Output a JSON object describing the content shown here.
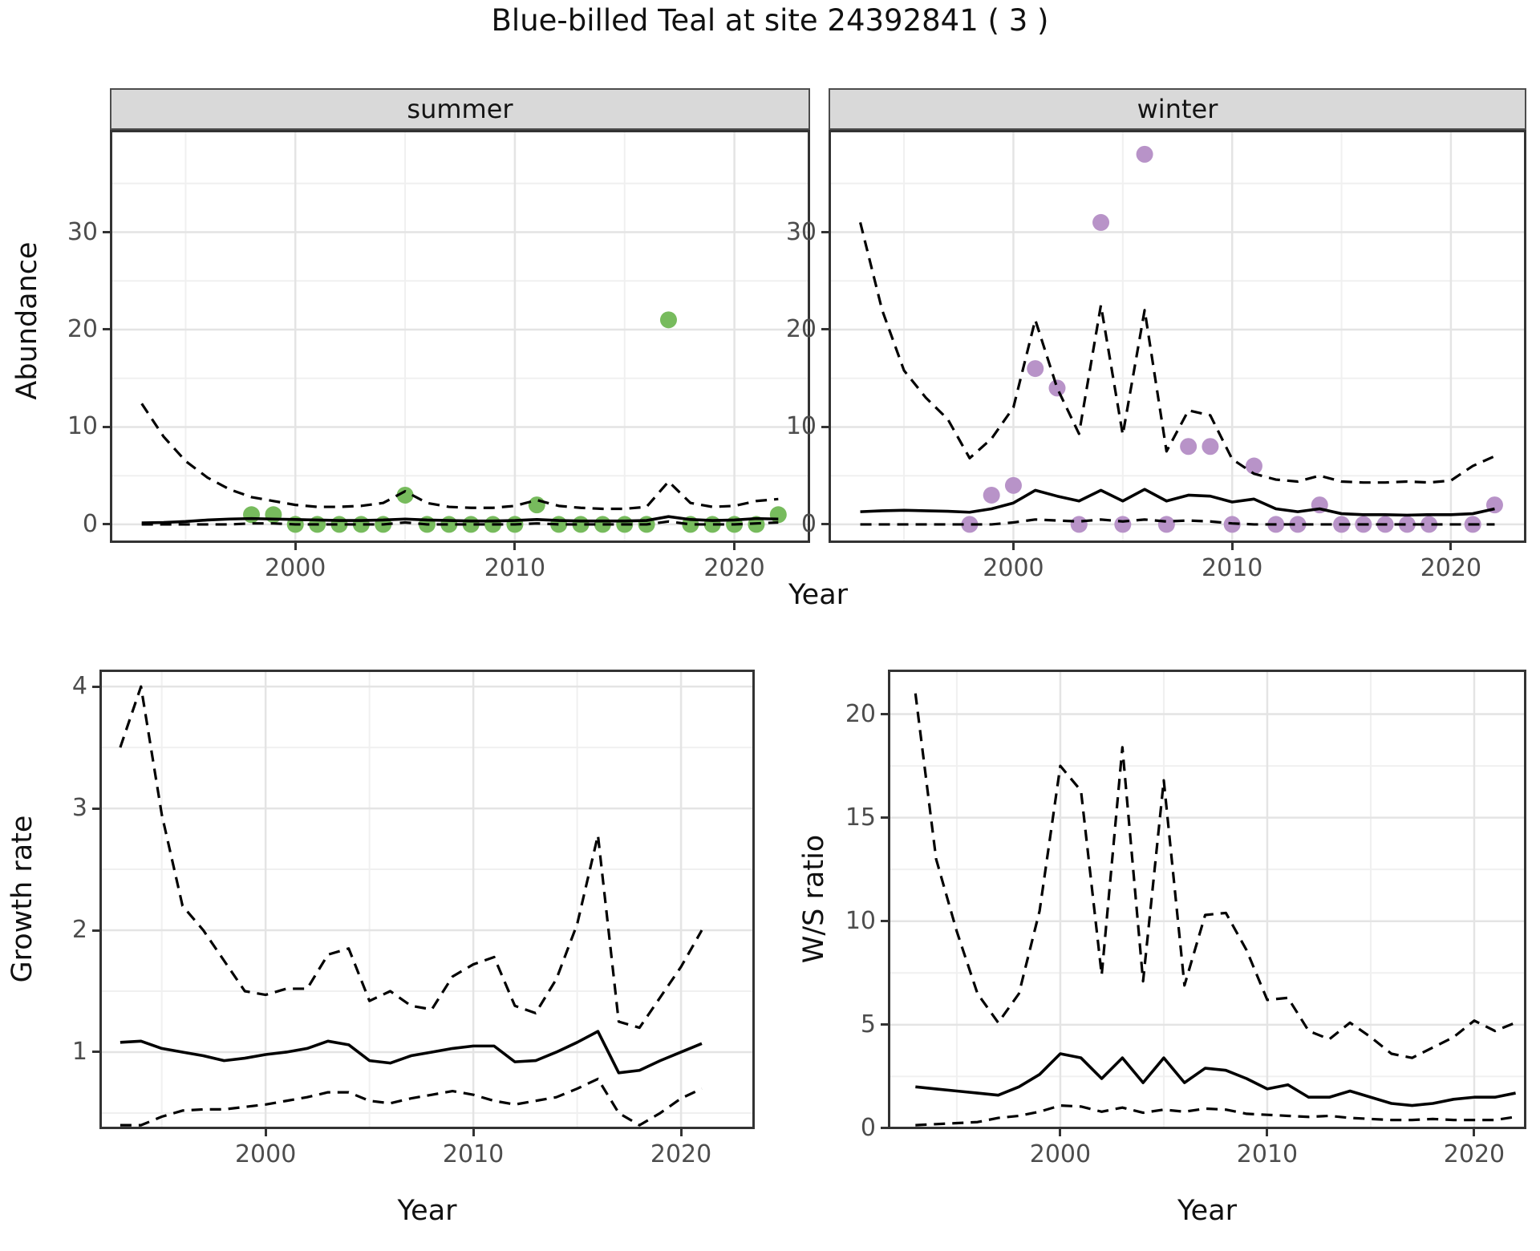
{
  "title": "Blue-billed Teal at site 24392841 ( 3 )",
  "facets": {
    "summer_label": "summer",
    "winter_label": "winter"
  },
  "axis_titles": {
    "abundance": "Abundance",
    "year_top": "Year",
    "growth": "Growth rate",
    "ws": "W/S ratio",
    "year_growth": "Year",
    "year_ws": "Year"
  },
  "colors": {
    "summer_points": "#77bb5d",
    "winter_points": "#b893c8",
    "line": "#000000",
    "strip_bg": "#d9d9d9",
    "grid_major": "#e4e4e4",
    "grid_minor": "#f0f0f0",
    "axis_text": "#4d4d4d",
    "panel_border": "#333333"
  },
  "chart_data": [
    {
      "name": "abundance-summer",
      "type": "line",
      "facet": "summer",
      "xlabel": "Year",
      "ylabel": "Abundance",
      "xlim": [
        1991.55,
        2023.45
      ],
      "ylim": [
        -1.9,
        40.5
      ],
      "x_major": [
        2000,
        2010,
        2020
      ],
      "x_tick_labels": [
        "2000",
        "2010",
        "2020"
      ],
      "x_minor": [
        1995,
        2005,
        2015
      ],
      "y_major": [
        0,
        10,
        20,
        30
      ],
      "y_tick_labels": [
        "0",
        "10",
        "20",
        "30"
      ],
      "y_minor": [
        5,
        15,
        25,
        35
      ],
      "years": [
        1993,
        1994,
        1995,
        1996,
        1997,
        1998,
        1999,
        2000,
        2001,
        2002,
        2003,
        2004,
        2005,
        2006,
        2007,
        2008,
        2009,
        2010,
        2011,
        2012,
        2013,
        2014,
        2015,
        2016,
        2017,
        2018,
        2019,
        2020,
        2021,
        2022
      ],
      "median": [
        0.15,
        0.2,
        0.3,
        0.45,
        0.55,
        0.6,
        0.55,
        0.5,
        0.45,
        0.4,
        0.4,
        0.45,
        0.55,
        0.45,
        0.4,
        0.35,
        0.35,
        0.4,
        0.5,
        0.4,
        0.35,
        0.35,
        0.35,
        0.4,
        0.8,
        0.5,
        0.4,
        0.45,
        0.6,
        0.55
      ],
      "upper": [
        12.4,
        9,
        6.5,
        4.8,
        3.6,
        2.8,
        2.4,
        2,
        1.8,
        1.8,
        1.9,
        2.2,
        3.4,
        2.2,
        1.8,
        1.7,
        1.7,
        1.9,
        2.5,
        1.9,
        1.7,
        1.6,
        1.6,
        1.8,
        4.4,
        2.2,
        1.8,
        1.9,
        2.4,
        2.6
      ],
      "lower": [
        0,
        0,
        0,
        0,
        0,
        0.1,
        0.1,
        0,
        0,
        0,
        0,
        0,
        0.2,
        0,
        0,
        0,
        0,
        0,
        0.1,
        0,
        0,
        0,
        0,
        0,
        0.3,
        0,
        0,
        0,
        0.1,
        0.2
      ],
      "points": {
        "color": "#77bb5d",
        "years": [
          1998,
          1999,
          2000,
          2001,
          2002,
          2003,
          2004,
          2005,
          2006,
          2007,
          2008,
          2009,
          2010,
          2011,
          2012,
          2013,
          2014,
          2015,
          2016,
          2017,
          2018,
          2019,
          2020,
          2021,
          2022
        ],
        "values": [
          1,
          1,
          0,
          0,
          0,
          0,
          0,
          3,
          0,
          0,
          0,
          0,
          0,
          2,
          0,
          0,
          0,
          0,
          0,
          21,
          0,
          0,
          0,
          0,
          1
        ]
      }
    },
    {
      "name": "abundance-winter",
      "type": "line",
      "facet": "winter",
      "xlabel": "Year",
      "ylabel": "Abundance",
      "xlim": [
        1991.55,
        2023.45
      ],
      "ylim": [
        -1.9,
        40.5
      ],
      "x_major": [
        2000,
        2010,
        2020
      ],
      "x_tick_labels": [
        "2000",
        "2010",
        "2020"
      ],
      "x_minor": [
        1995,
        2005,
        2015
      ],
      "y_major": [
        0,
        10,
        20,
        30
      ],
      "y_tick_labels": [
        "0",
        "10",
        "20",
        "30"
      ],
      "y_minor": [
        5,
        15,
        25,
        35
      ],
      "years": [
        1993,
        1994,
        1995,
        1996,
        1997,
        1998,
        1999,
        2000,
        2001,
        2002,
        2003,
        2004,
        2005,
        2006,
        2007,
        2008,
        2009,
        2010,
        2011,
        2012,
        2013,
        2014,
        2015,
        2016,
        2017,
        2018,
        2019,
        2020,
        2021,
        2022
      ],
      "median": [
        1.3,
        1.4,
        1.45,
        1.4,
        1.35,
        1.25,
        1.6,
        2.2,
        3.5,
        2.9,
        2.4,
        3.5,
        2.4,
        3.6,
        2.4,
        3,
        2.9,
        2.3,
        2.6,
        1.6,
        1.3,
        1.6,
        1.1,
        1,
        1,
        0.95,
        1,
        1,
        1.1,
        1.6
      ],
      "upper": [
        31,
        22,
        15.8,
        13,
        10.8,
        6.8,
        8.8,
        12,
        21,
        14,
        9.3,
        22.5,
        9.2,
        22,
        7.5,
        11.7,
        11.2,
        6.7,
        5.2,
        4.6,
        4.4,
        5,
        4.4,
        4.3,
        4.3,
        4.4,
        4.3,
        4.5,
        6,
        7
      ],
      "lower": [
        0,
        0,
        0,
        0,
        0,
        0,
        0,
        0.2,
        0.5,
        0.4,
        0.3,
        0.5,
        0.3,
        0.5,
        0.3,
        0.4,
        0.3,
        0.1,
        0,
        0,
        0,
        0,
        0,
        0,
        0,
        0,
        0,
        0,
        0,
        0
      ],
      "points": {
        "color": "#b893c8",
        "years": [
          1998,
          1999,
          2000,
          2001,
          2002,
          2003,
          2004,
          2005,
          2006,
          2007,
          2008,
          2009,
          2010,
          2011,
          2012,
          2013,
          2014,
          2015,
          2016,
          2017,
          2018,
          2019,
          2021,
          2022
        ],
        "values": [
          0,
          3,
          4,
          16,
          14,
          0,
          31,
          0,
          38,
          0,
          8,
          8,
          0,
          6,
          0,
          0,
          2,
          0,
          0,
          0,
          0,
          0,
          0,
          2
        ]
      }
    },
    {
      "name": "growth-rate",
      "type": "line",
      "facet": "",
      "xlabel": "Year",
      "ylabel": "Growth rate",
      "xlim": [
        1992.0,
        2023.55
      ],
      "ylim": [
        0.368,
        4.139
      ],
      "x_major": [
        2000,
        2010,
        2020
      ],
      "x_tick_labels": [
        "2000",
        "2010",
        "2020"
      ],
      "x_minor": [
        1995,
        2005,
        2015
      ],
      "y_major": [
        1,
        2,
        3,
        4
      ],
      "y_tick_labels": [
        "1",
        "2",
        "3",
        "4"
      ],
      "y_minor": [
        0.5,
        1.5,
        2.5,
        3.5
      ],
      "years": [
        1993,
        1994,
        1995,
        1996,
        1997,
        1998,
        1999,
        2000,
        2001,
        2002,
        2003,
        2004,
        2005,
        2006,
        2007,
        2008,
        2009,
        2010,
        2011,
        2012,
        2013,
        2014,
        2015,
        2016,
        2017,
        2018,
        2019,
        2020,
        2021
      ],
      "median": [
        1.08,
        1.09,
        1.03,
        1,
        0.97,
        0.93,
        0.95,
        0.98,
        1,
        1.03,
        1.09,
        1.06,
        0.93,
        0.91,
        0.97,
        1,
        1.03,
        1.05,
        1.05,
        0.92,
        0.93,
        1,
        1.08,
        1.17,
        0.83,
        0.85,
        0.93,
        1,
        1.07
      ],
      "upper": [
        3.5,
        4,
        2.95,
        2.2,
        2,
        1.75,
        1.5,
        1.47,
        1.52,
        1.52,
        1.8,
        1.85,
        1.42,
        1.5,
        1.38,
        1.35,
        1.62,
        1.72,
        1.78,
        1.38,
        1.32,
        1.6,
        2.05,
        2.78,
        1.25,
        1.2,
        1.45,
        1.7,
        2
      ],
      "lower": [
        0.4,
        0.4,
        0.47,
        0.52,
        0.53,
        0.53,
        0.55,
        0.57,
        0.6,
        0.63,
        0.67,
        0.67,
        0.6,
        0.58,
        0.62,
        0.65,
        0.68,
        0.65,
        0.6,
        0.57,
        0.6,
        0.63,
        0.7,
        0.78,
        0.5,
        0.4,
        0.5,
        0.62,
        0.7
      ]
    },
    {
      "name": "ws-ratio",
      "type": "line",
      "facet": "",
      "xlabel": "Year",
      "ylabel": "W/S ratio",
      "xlim": [
        1991.67,
        2022.52
      ],
      "ylim": [
        -0.04,
        22.15
      ],
      "x_major": [
        2000,
        2010,
        2020
      ],
      "x_tick_labels": [
        "2000",
        "2010",
        "2020"
      ],
      "x_minor": [
        1995,
        2005,
        2015
      ],
      "y_major": [
        0,
        5,
        10,
        15,
        20
      ],
      "y_tick_labels": [
        "0",
        "5",
        "10",
        "15",
        "20"
      ],
      "y_minor": [
        2.5,
        7.5,
        12.5,
        17.5
      ],
      "years": [
        1993,
        1994,
        1995,
        1996,
        1997,
        1998,
        1999,
        2000,
        2001,
        2002,
        2003,
        2004,
        2005,
        2006,
        2007,
        2008,
        2009,
        2010,
        2011,
        2012,
        2013,
        2014,
        2015,
        2016,
        2017,
        2018,
        2019,
        2020,
        2021,
        2022
      ],
      "median": [
        2,
        1.9,
        1.8,
        1.7,
        1.6,
        2,
        2.6,
        3.6,
        3.4,
        2.4,
        3.4,
        2.2,
        3.4,
        2.2,
        2.9,
        2.8,
        2.4,
        1.9,
        2.1,
        1.5,
        1.5,
        1.8,
        1.5,
        1.2,
        1.1,
        1.2,
        1.4,
        1.5,
        1.5,
        1.7
      ],
      "upper": [
        21,
        13,
        9.5,
        6.5,
        5.1,
        6.5,
        10.5,
        17.5,
        16.3,
        7.4,
        18.4,
        7.1,
        16.8,
        6.9,
        10.3,
        10.4,
        8.6,
        6.2,
        6.3,
        4.7,
        4.3,
        5.1,
        4.4,
        3.6,
        3.4,
        3.9,
        4.4,
        5.2,
        4.7,
        5.1
      ],
      "lower": [
        0.15,
        0.2,
        0.25,
        0.3,
        0.5,
        0.6,
        0.8,
        1.1,
        1.05,
        0.8,
        1,
        0.75,
        0.9,
        0.8,
        0.95,
        0.9,
        0.7,
        0.65,
        0.6,
        0.55,
        0.6,
        0.5,
        0.45,
        0.4,
        0.4,
        0.45,
        0.4,
        0.4,
        0.4,
        0.55
      ]
    }
  ]
}
